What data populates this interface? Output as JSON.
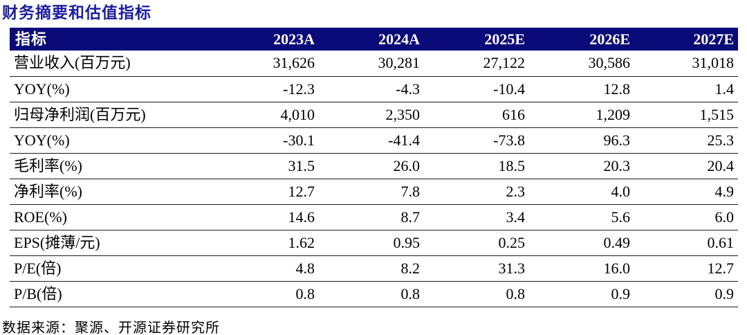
{
  "title": "财务摘要和估值指标",
  "table": {
    "header": [
      "指标",
      "2023A",
      "2024A",
      "2025E",
      "2026E",
      "2027E"
    ],
    "rows": [
      {
        "label": "营业收入(百万元)",
        "values": [
          "31,626",
          "30,281",
          "27,122",
          "30,586",
          "31,018"
        ]
      },
      {
        "label": "YOY(%)",
        "values": [
          "-12.3",
          "-4.3",
          "-10.4",
          "12.8",
          "1.4"
        ]
      },
      {
        "label": "归母净利润(百万元)",
        "values": [
          "4,010",
          "2,350",
          "616",
          "1,209",
          "1,515"
        ]
      },
      {
        "label": "YOY(%)",
        "values": [
          "-30.1",
          "-41.4",
          "-73.8",
          "96.3",
          "25.3"
        ]
      },
      {
        "label": "毛利率(%)",
        "values": [
          "31.5",
          "26.0",
          "18.5",
          "20.3",
          "20.4"
        ]
      },
      {
        "label": "净利率(%)",
        "values": [
          "12.7",
          "7.8",
          "2.3",
          "4.0",
          "4.9"
        ]
      },
      {
        "label": "ROE(%)",
        "values": [
          "14.6",
          "8.7",
          "3.4",
          "5.6",
          "6.0"
        ]
      },
      {
        "label": "EPS(摊薄/元)",
        "values": [
          "1.62",
          "0.95",
          "0.25",
          "0.49",
          "0.61"
        ]
      },
      {
        "label": "P/E(倍)",
        "values": [
          "4.8",
          "8.2",
          "31.3",
          "16.0",
          "12.7"
        ]
      },
      {
        "label": "P/B(倍)",
        "values": [
          "0.8",
          "0.8",
          "0.8",
          "0.9",
          "0.9"
        ]
      }
    ]
  },
  "footer": {
    "source_text": "数据来源：聚源、开源证券研究所"
  },
  "colors": {
    "header_bg": "#0A0A78",
    "title_text": "#1D1D9E",
    "body_text": "#000000",
    "header_text": "#FFFFFF",
    "row_border": "#1A1A1A"
  }
}
